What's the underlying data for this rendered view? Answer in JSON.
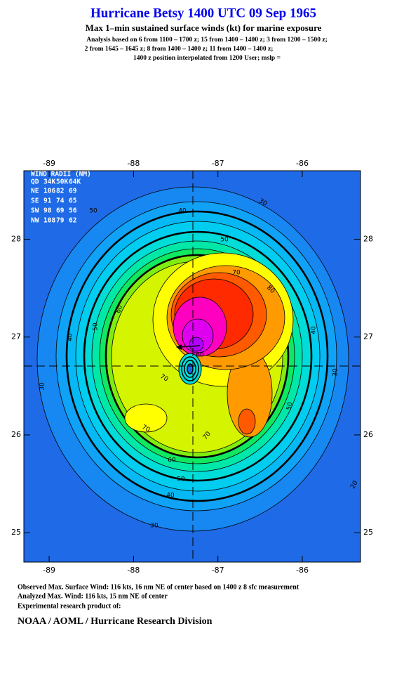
{
  "header": {
    "title": "Hurricane Betsy 1400 UTC 09 Sep 1965",
    "subtitle": "Max 1–min sustained surface winds (kt) for marine exposure",
    "notes": [
      "Analysis based on  6 from 1100 – 1700 z;  15 from 1400 – 1400 z;  3 from 1200 – 1500 z;",
      "2 from 1645 – 1645 z;  8 from 1400 – 1400 z;  11 from 1400 – 1400 z;",
      "1400 z position interpolated from 1200 User; mslp ="
    ]
  },
  "map": {
    "xlim": [
      -89.3,
      -85.31
    ],
    "ylim": [
      24.7,
      28.7
    ],
    "xticks": [
      -89,
      -88,
      -87,
      -86
    ],
    "yticks": [
      25,
      26,
      27,
      28
    ],
    "contour_labels": [
      30,
      40,
      50,
      60,
      70,
      80,
      70,
      70,
      60,
      50,
      40,
      30,
      50,
      40,
      30,
      20,
      30,
      40,
      50,
      60,
      50,
      70
    ]
  },
  "wind_radii": {
    "title": "WIND RADII (NM)",
    "header": [
      "QD",
      "34K",
      "50K",
      "64K"
    ],
    "rows": [
      [
        "NE",
        106,
        82,
        69
      ],
      [
        "SE",
        91,
        74,
        65
      ],
      [
        "SW",
        98,
        69,
        56
      ],
      [
        "NW",
        108,
        79,
        62
      ]
    ]
  },
  "footer": {
    "lines": [
      "Observed Max. Surface Wind: 116 kts, 16 nm NE of center based on 1400 z 8 sfc measurement",
      "Analyzed Max. Wind: 116 kts, 15 nm NE of center",
      "Experimental research product of:"
    ],
    "org": "NOAA / AOML / Hurricane Research Division"
  }
}
